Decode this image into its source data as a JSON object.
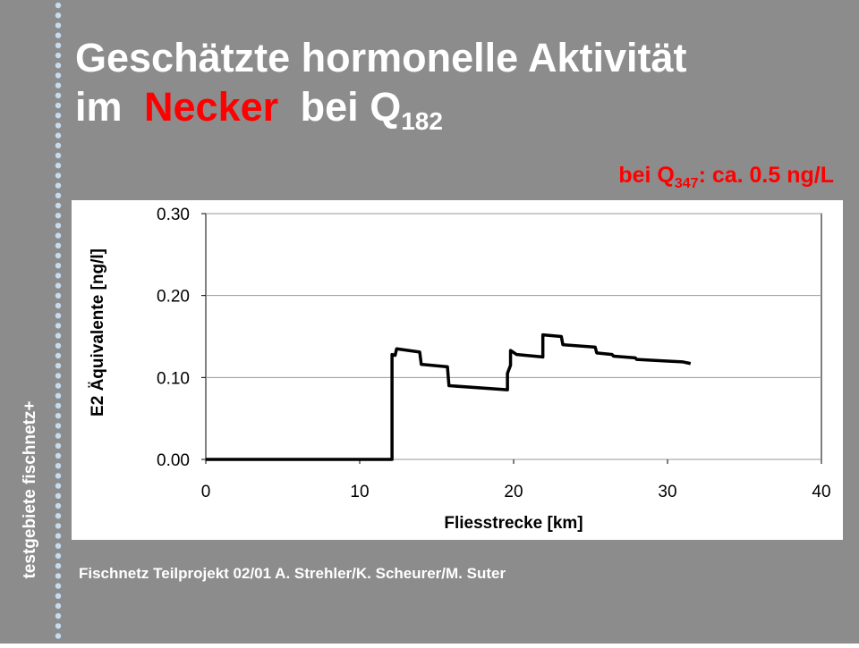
{
  "slide": {
    "title_line1": "Geschätzte hormonelle Aktivität",
    "title_line2": [
      "im",
      "Necker",
      "bei Q",
      "182"
    ],
    "subtitle": [
      "bei Q",
      "347",
      ": ca. 0.5 ng/L"
    ],
    "side_text": "testgebiete fischnetz+",
    "footer": "Fischnetz Teilprojekt 02/01 A. Strehler/K. Scheurer/M. Suter"
  },
  "chart_data": {
    "type": "line",
    "xlabel": "Fliesstrecke  [km]",
    "ylabel": "E2 Äquivalente  [ng/l]",
    "x": [
      0,
      12.1,
      12.1,
      12.3,
      12.4,
      13.9,
      14.0,
      15.7,
      15.8,
      19.6,
      19.6,
      19.8,
      19.8,
      20.2,
      21.9,
      21.9,
      23.1,
      23.2,
      25.3,
      25.4,
      26.4,
      26.5,
      27.9,
      28.0,
      30.0,
      31.0,
      31.5
    ],
    "values": [
      0,
      0,
      0.128,
      0.127,
      0.135,
      0.131,
      0.116,
      0.113,
      0.09,
      0.085,
      0.105,
      0.115,
      0.133,
      0.128,
      0.125,
      0.152,
      0.15,
      0.14,
      0.137,
      0.13,
      0.128,
      0.126,
      0.124,
      0.122,
      0.12,
      0.119,
      0.117
    ],
    "color": "#000000",
    "xlim": [
      0,
      40
    ],
    "xticks": [
      0,
      10,
      20,
      30,
      40
    ],
    "ylim": [
      0,
      0.3
    ],
    "yticks": [
      {
        "value": 0,
        "label": "0.00"
      },
      {
        "value": 0.1,
        "label": "0.10"
      },
      {
        "value": 0.2,
        "label": "0.20"
      },
      {
        "value": 0.3,
        "label": "0.30"
      }
    ],
    "grid": true
  }
}
